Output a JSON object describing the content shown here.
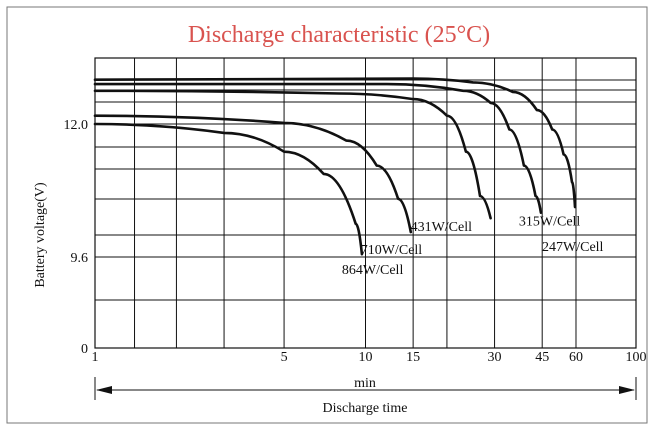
{
  "chart_data": {
    "type": "line",
    "title": "Discharge characteristic (25°C)",
    "ylabel": "Battery voltage(V)",
    "xunit": "min",
    "xlabel": "Discharge time",
    "y_ticks": [
      "0",
      "9.6",
      "12.0"
    ],
    "x_ticks": [
      "1",
      "5",
      "10",
      "15",
      "30",
      "45",
      "60",
      "100"
    ],
    "x_scale": "log",
    "xlim": [
      1,
      100
    ],
    "grid": true,
    "series": [
      {
        "name": "864W/Cell",
        "points": [
          [
            1,
            12.0
          ],
          [
            3,
            11.84
          ],
          [
            5,
            11.5
          ],
          [
            7,
            11.1
          ],
          [
            9.2,
            10.2
          ],
          [
            9.7,
            9.65
          ]
        ]
      },
      {
        "name": "710W/Cell",
        "points": [
          [
            1,
            12.15
          ],
          [
            5,
            12.02
          ],
          [
            8.5,
            11.7
          ],
          [
            11,
            11.25
          ],
          [
            13.2,
            10.65
          ],
          [
            14.7,
            10.05
          ]
        ]
      },
      {
        "name": "431W/Cell",
        "points": [
          [
            1,
            12.6
          ],
          [
            8,
            12.55
          ],
          [
            15,
            12.45
          ],
          [
            20,
            12.15
          ],
          [
            23.5,
            11.5
          ],
          [
            26.5,
            10.7
          ],
          [
            29,
            10.3
          ]
        ]
      },
      {
        "name": "315W/Cell",
        "points": [
          [
            1,
            12.72
          ],
          [
            12,
            12.72
          ],
          [
            23,
            12.6
          ],
          [
            29,
            12.38
          ],
          [
            34,
            11.9
          ],
          [
            38.5,
            11.25
          ],
          [
            42.5,
            10.7
          ],
          [
            44.5,
            10.4
          ]
        ]
      },
      {
        "name": "247W/Cell",
        "points": [
          [
            1,
            12.8
          ],
          [
            15,
            12.82
          ],
          [
            25,
            12.75
          ],
          [
            35,
            12.58
          ],
          [
            43,
            12.25
          ],
          [
            49,
            11.9
          ],
          [
            54,
            11.45
          ],
          [
            58,
            10.95
          ],
          [
            59.5,
            10.5
          ]
        ]
      }
    ]
  }
}
